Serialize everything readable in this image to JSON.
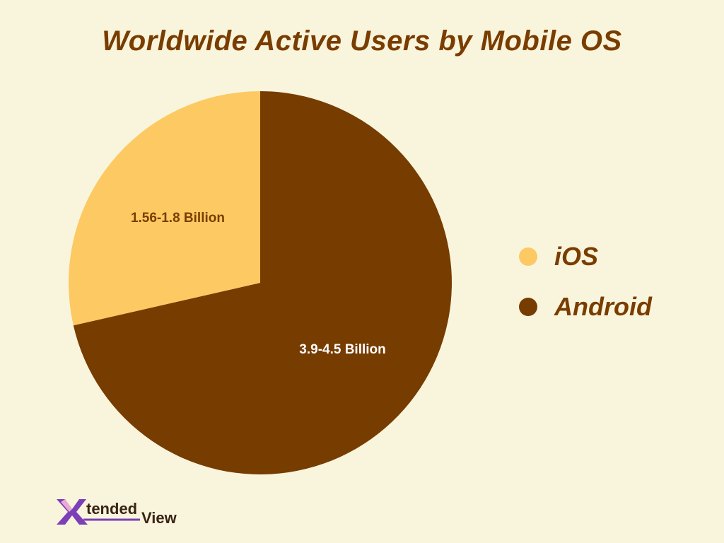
{
  "chart_data": {
    "type": "pie",
    "title": "Worldwide Active Users by Mobile OS",
    "slices": [
      {
        "name": "iOS",
        "label": "1.56-1.8 Billion",
        "value": 1.68,
        "color": "#fdc962",
        "label_color": "#7a3d00"
      },
      {
        "name": "Android",
        "label": "3.9-4.5 Billion",
        "value": 4.2,
        "color": "#773c00",
        "label_color": "#ffffff"
      }
    ],
    "legend_position": "right",
    "start_angle_deg": 0,
    "direction": "clockwise-from-top-android-first"
  },
  "branding": {
    "logo_text": "XtendedView",
    "colors": {
      "x_mark": "#7b3fb8",
      "text": "#3a2413"
    }
  }
}
